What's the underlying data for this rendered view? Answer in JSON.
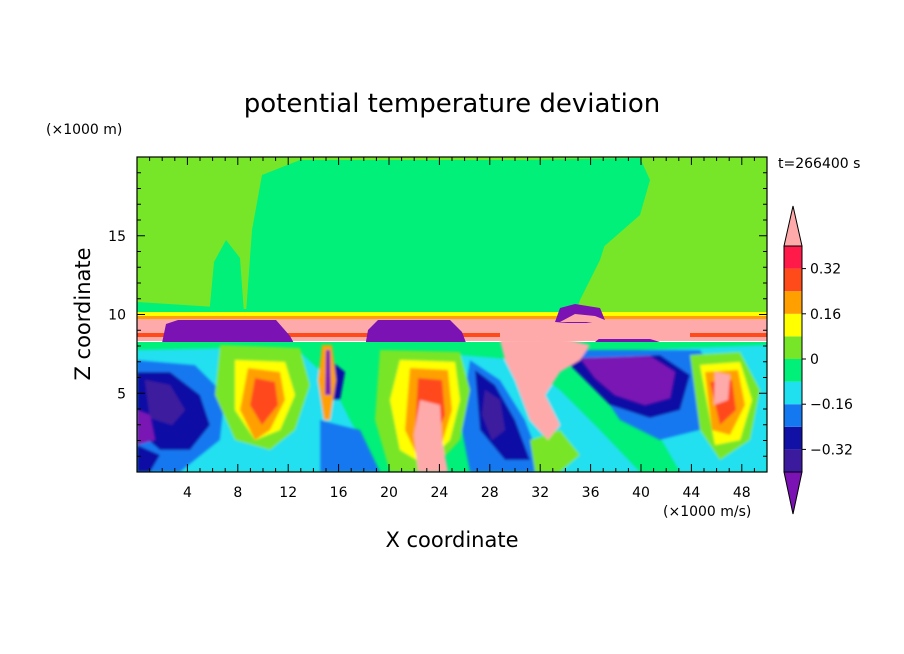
{
  "chart_data": {
    "type": "heatmap",
    "title": "potential temperature deviation",
    "time_label": "t=266400 s",
    "xlabel": "X coordinate",
    "ylabel": "Z coordinate",
    "x_unit": "(×1000 m/s)",
    "y_unit": "(×1000 m)",
    "xlim": [
      0,
      50
    ],
    "ylim": [
      0,
      20
    ],
    "x_ticks": [
      4,
      8,
      12,
      16,
      20,
      24,
      28,
      32,
      36,
      40,
      44,
      48
    ],
    "y_ticks": [
      5,
      10,
      15
    ],
    "colorbar": {
      "levels": [
        -0.4,
        -0.32,
        -0.24,
        -0.16,
        -0.08,
        0,
        0.08,
        0.16,
        0.24,
        0.32,
        0.4
      ],
      "tick_labels": [
        "0.32",
        "0.16",
        "0",
        "−0.16",
        "−0.32"
      ],
      "tick_values": [
        0.32,
        0.16,
        0,
        -0.16,
        -0.32
      ],
      "colors": [
        "#7a12b4",
        "#3c1a9e",
        "#1111a6",
        "#1478f0",
        "#20e0f0",
        "#00f07a",
        "#78e628",
        "#ffff00",
        "#ffa000",
        "#ff4a1a",
        "#ff1a4a",
        "#ffaaaa"
      ],
      "extend": "both"
    }
  }
}
